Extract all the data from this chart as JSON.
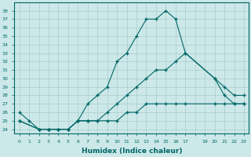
{
  "xlabel": "Humidex (Indice chaleur)",
  "background_color": "#cce8e8",
  "grid_color": "#aacccc",
  "line_color": "#006666",
  "xlim": [
    -0.5,
    23.5
  ],
  "ylim": [
    23.5,
    39.0
  ],
  "xtick_labels": [
    "0",
    "1",
    "2",
    "3",
    "4",
    "5",
    "6",
    "7",
    "8",
    "9",
    "10",
    "11",
    "12",
    "13",
    "14",
    "15",
    "16",
    "17",
    "",
    "19",
    "20",
    "21",
    "22",
    "23"
  ],
  "xtick_positions": [
    0,
    1,
    2,
    3,
    4,
    5,
    6,
    7,
    8,
    9,
    10,
    11,
    12,
    13,
    14,
    15,
    16,
    17,
    18,
    19,
    20,
    21,
    22,
    23
  ],
  "yticks": [
    24,
    25,
    26,
    27,
    28,
    29,
    30,
    31,
    32,
    33,
    34,
    35,
    36,
    37,
    38
  ],
  "line1_x": [
    0,
    1,
    2,
    3,
    4,
    5,
    6,
    7,
    8,
    9,
    10,
    11,
    12,
    13,
    14,
    15,
    16,
    17,
    20,
    21,
    22,
    23
  ],
  "line1_y": [
    26,
    25,
    24,
    24,
    24,
    24,
    25,
    27,
    28,
    29,
    32,
    33,
    35,
    37,
    37,
    38,
    37,
    33,
    30,
    28,
    27,
    27
  ],
  "line2_x": [
    0,
    2,
    3,
    4,
    5,
    6,
    7,
    8,
    9,
    10,
    11,
    12,
    13,
    14,
    15,
    16,
    17,
    20,
    21,
    22,
    23
  ],
  "line2_y": [
    25,
    24,
    24,
    24,
    24,
    25,
    25,
    25,
    26,
    27,
    28,
    29,
    30,
    31,
    31,
    32,
    33,
    30,
    29,
    28,
    28
  ],
  "line3_x": [
    0,
    2,
    3,
    4,
    5,
    6,
    7,
    8,
    9,
    10,
    11,
    12,
    13,
    14,
    15,
    16,
    17,
    20,
    21,
    22,
    23
  ],
  "line3_y": [
    25,
    24,
    24,
    24,
    24,
    25,
    25,
    25,
    25,
    25,
    26,
    26,
    27,
    27,
    27,
    27,
    27,
    27,
    27,
    27,
    27
  ]
}
